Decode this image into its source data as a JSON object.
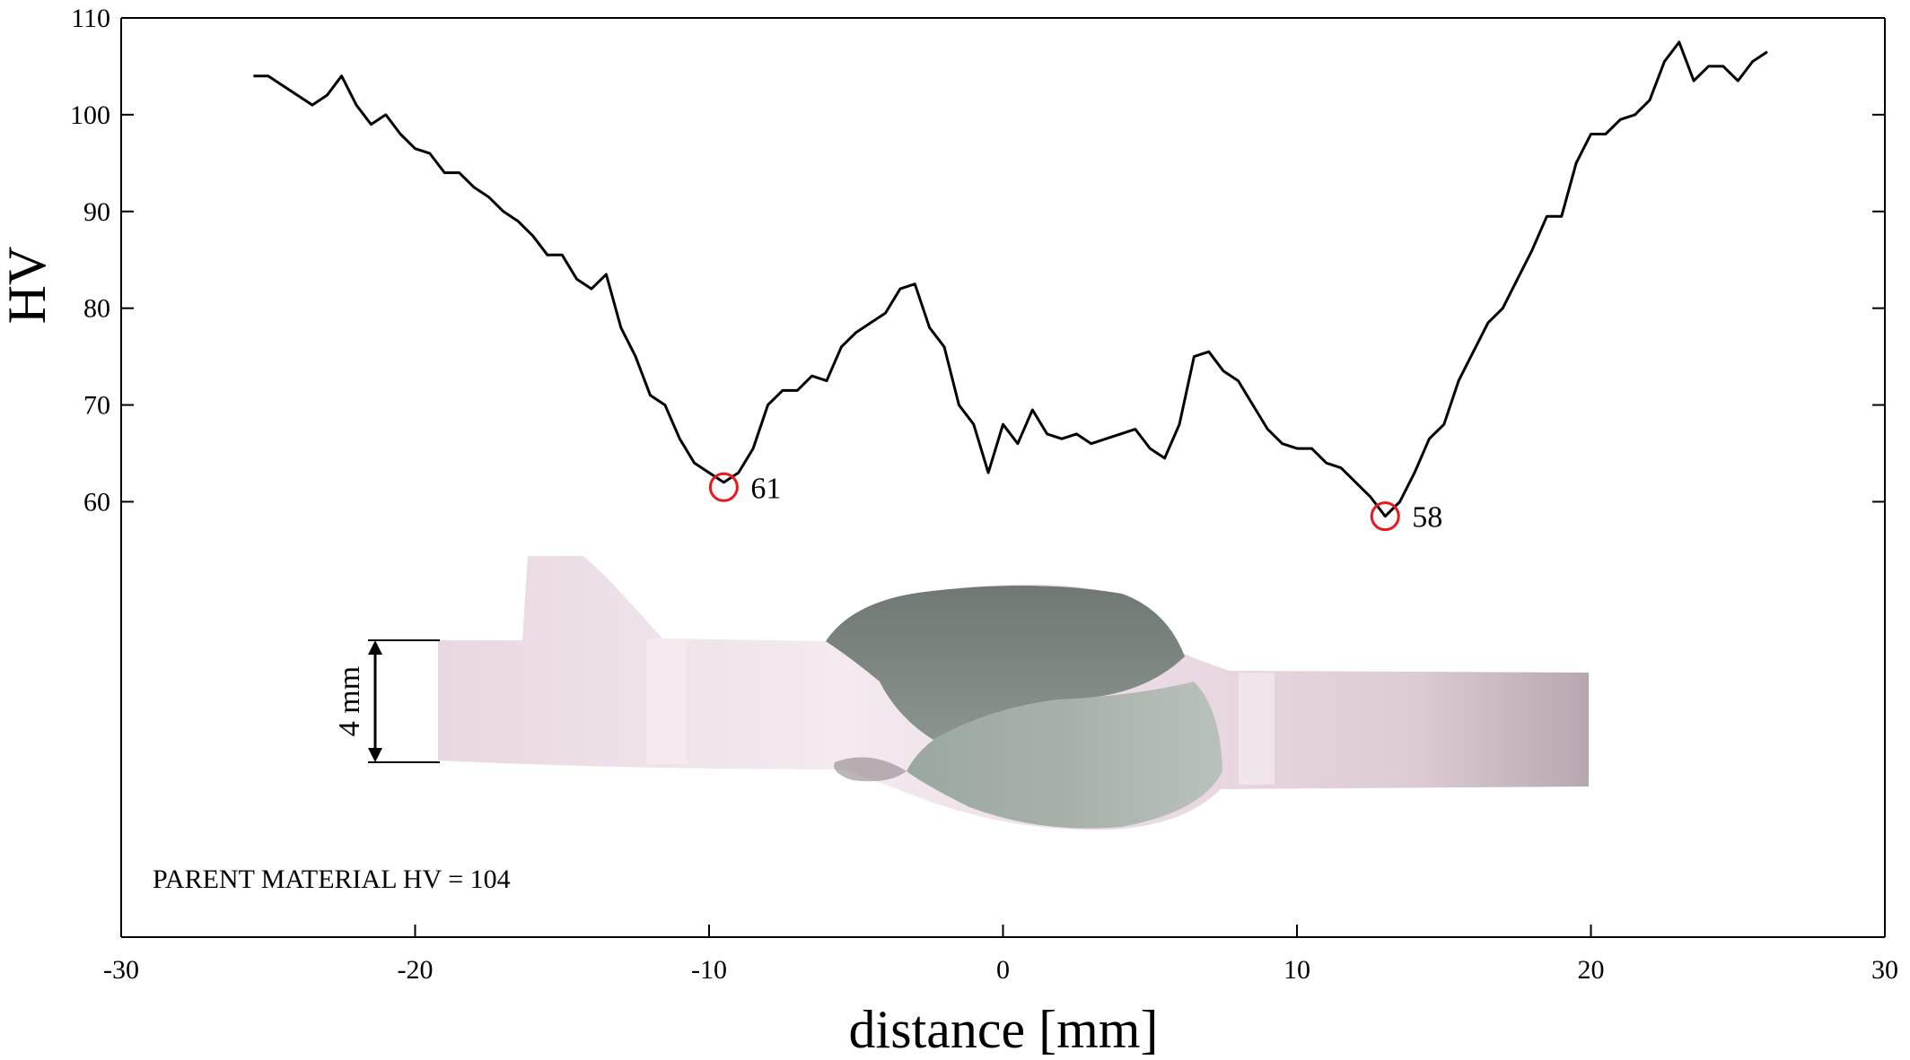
{
  "chart_data": {
    "type": "line",
    "xlabel": "distance [mm]",
    "ylabel": "HV",
    "xlim": [
      -30,
      30
    ],
    "ylim": [
      15,
      110
    ],
    "xticks": [
      -30,
      -20,
      -10,
      0,
      10,
      20,
      30
    ],
    "yticks": [
      60,
      70,
      80,
      90,
      100,
      110
    ],
    "grid": false,
    "series": [
      {
        "x": [
          -25.5,
          -25,
          -24.5,
          -24,
          -23.5,
          -23,
          -22.5,
          -22,
          -21.5,
          -21,
          -20.5,
          -20,
          -19.5,
          -19,
          -18.5,
          -18,
          -17.5,
          -17,
          -16.5,
          -16,
          -15.5,
          -15,
          -14.5,
          -14,
          -13.5,
          -13,
          -12.5,
          -12,
          -11.5,
          -11,
          -10.5,
          -10,
          -9.5,
          -9,
          -8.5,
          -8,
          -7.5,
          -7,
          -6.5,
          -6,
          -5.5,
          -5,
          -4.5,
          -4,
          -3.5,
          -3,
          -2.5,
          -2,
          -1.5,
          -1,
          -0.5,
          0,
          0.5,
          1,
          1.5,
          2,
          2.5,
          3,
          3.5,
          4,
          4.5,
          5,
          5.5,
          6,
          6.5,
          7,
          7.5,
          8,
          8.5,
          9,
          9.5,
          10,
          10.5,
          11,
          11.5,
          12,
          12.5,
          13,
          13.5,
          14,
          14.5,
          15,
          15.5,
          16,
          16.5,
          17,
          17.5,
          18,
          18.5,
          19,
          19.5,
          20,
          20.5,
          21,
          21.5,
          22,
          22.5,
          23,
          23.5,
          24,
          24.5,
          25,
          25.5,
          26
        ],
        "values": [
          104,
          104,
          103,
          102,
          101,
          102,
          104,
          101,
          99,
          100,
          98,
          96.5,
          96,
          94,
          94,
          92.5,
          91.5,
          90,
          89,
          87.5,
          85.5,
          85.5,
          83,
          82,
          83.5,
          78,
          75,
          71,
          70,
          66.5,
          64,
          63,
          62,
          63,
          65.5,
          70,
          71.5,
          71.5,
          73,
          72.5,
          76,
          77.5,
          78.5,
          79.5,
          82,
          82.5,
          78,
          76,
          70,
          68,
          63,
          68,
          66,
          69.5,
          67,
          66.5,
          67,
          66,
          66.5,
          67,
          67.5,
          65.5,
          64.5,
          68,
          75,
          75.5,
          73.5,
          72.5,
          70,
          67.5,
          66,
          65.5,
          65.5,
          64,
          63.5,
          62,
          60.5,
          58.5,
          60,
          63,
          66.5,
          68,
          72.5,
          75.5,
          78.5,
          80,
          83,
          86,
          89.5,
          89.5,
          95,
          98,
          98,
          99.5,
          100,
          101.5,
          105.5,
          107.5,
          103.5,
          105,
          105,
          103.5,
          105.5,
          106.5
        ],
        "color": "#000000"
      }
    ],
    "annotations": [
      {
        "text": "61",
        "x": -9.5,
        "y": 61.5,
        "marker": "circle",
        "marker_color": "#e8191b"
      },
      {
        "text": "58",
        "x": 13,
        "y": 58.5,
        "marker": "circle",
        "marker_color": "#e8191b"
      }
    ],
    "inset": {
      "dimension_label": "4 mm",
      "note": "PARENT MATERIAL HV = 104"
    }
  }
}
